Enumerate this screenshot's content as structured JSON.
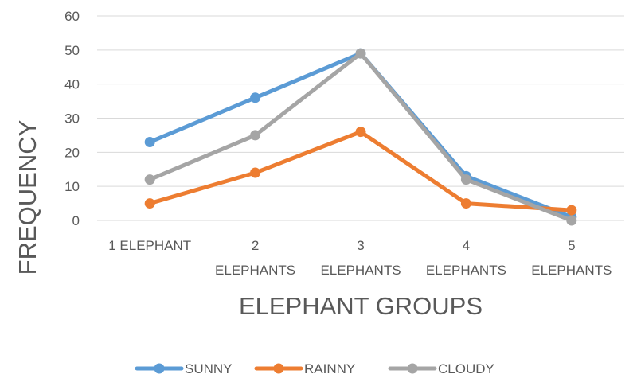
{
  "chart_data": {
    "type": "line",
    "title": "",
    "xlabel": "ELEPHANT GROUPS",
    "ylabel": "FREQUENCY",
    "categories": [
      [
        "1 ELEPHANT"
      ],
      [
        "2",
        "ELEPHANTS"
      ],
      [
        "3",
        "ELEPHANTS"
      ],
      [
        "4",
        "ELEPHANTS"
      ],
      [
        "5",
        "ELEPHANTS"
      ]
    ],
    "ylim": [
      0,
      60
    ],
    "yticks": [
      0,
      10,
      20,
      30,
      40,
      50,
      60
    ],
    "grid": true,
    "legend_position": "bottom",
    "series": [
      {
        "name": "SUNNY",
        "color": "#5b9bd5",
        "values": [
          23,
          36,
          49,
          13,
          1
        ]
      },
      {
        "name": "RAINNY",
        "color": "#ed7d31",
        "values": [
          5,
          14,
          26,
          5,
          3
        ]
      },
      {
        "name": "CLOUDY",
        "color": "#a5a5a5",
        "values": [
          12,
          25,
          49,
          12,
          0
        ]
      }
    ]
  }
}
